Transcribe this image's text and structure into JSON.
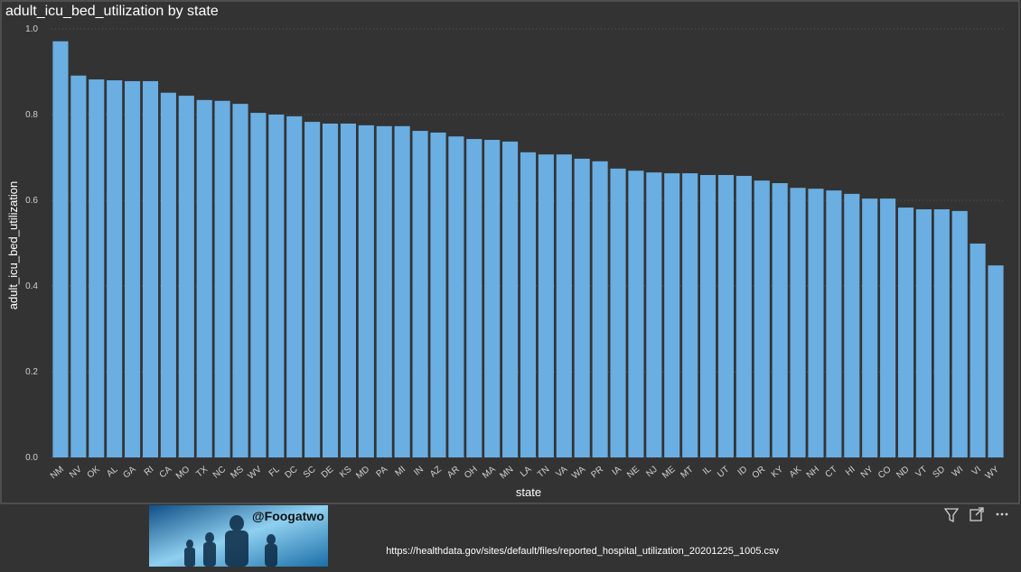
{
  "chart_data": {
    "type": "bar",
    "title": "adult_icu_bed_utilization by state",
    "x_label": "state",
    "y_label": "adult_icu_bed_utilization",
    "categories": [
      "NM",
      "NV",
      "OK",
      "AL",
      "GA",
      "RI",
      "CA",
      "MO",
      "TX",
      "NC",
      "MS",
      "WV",
      "FL",
      "DC",
      "SC",
      "DE",
      "KS",
      "MD",
      "PA",
      "MI",
      "IN",
      "AZ",
      "AR",
      "OH",
      "MA",
      "MN",
      "LA",
      "TN",
      "VA",
      "WA",
      "PR",
      "IA",
      "NE",
      "NJ",
      "ME",
      "MT",
      "IL",
      "UT",
      "ID",
      "OR",
      "KY",
      "AK",
      "NH",
      "CT",
      "HI",
      "NY",
      "CO",
      "ND",
      "VT",
      "SD",
      "WI",
      "VI",
      "WY"
    ],
    "values": [
      0.971,
      0.891,
      0.882,
      0.88,
      0.878,
      0.878,
      0.851,
      0.844,
      0.834,
      0.832,
      0.825,
      0.804,
      0.8,
      0.796,
      0.783,
      0.779,
      0.779,
      0.775,
      0.773,
      0.773,
      0.762,
      0.758,
      0.749,
      0.743,
      0.741,
      0.737,
      0.712,
      0.707,
      0.707,
      0.697,
      0.691,
      0.674,
      0.669,
      0.665,
      0.663,
      0.663,
      0.659,
      0.659,
      0.657,
      0.646,
      0.64,
      0.629,
      0.627,
      0.623,
      0.615,
      0.604,
      0.604,
      0.583,
      0.579,
      0.579,
      0.575,
      0.499,
      0.448
    ],
    "color": "#6aaee2",
    "ylim": [
      0,
      1.0
    ],
    "yticks": [
      {
        "value": 0,
        "label": "0.0"
      },
      {
        "value": 0.2,
        "label": "0.2"
      },
      {
        "value": 0.4,
        "label": "0.4"
      },
      {
        "value": 0.6,
        "label": "0.6"
      },
      {
        "value": 0.8,
        "label": "0.8"
      },
      {
        "value": 1.0,
        "label": "1.0"
      }
    ],
    "grid": true
  },
  "footer": {
    "handle": "@Foogatwo",
    "source": "https://healthdata.gov/sites/default/files/reported_hospital_utilization_20201225_1005.csv"
  }
}
